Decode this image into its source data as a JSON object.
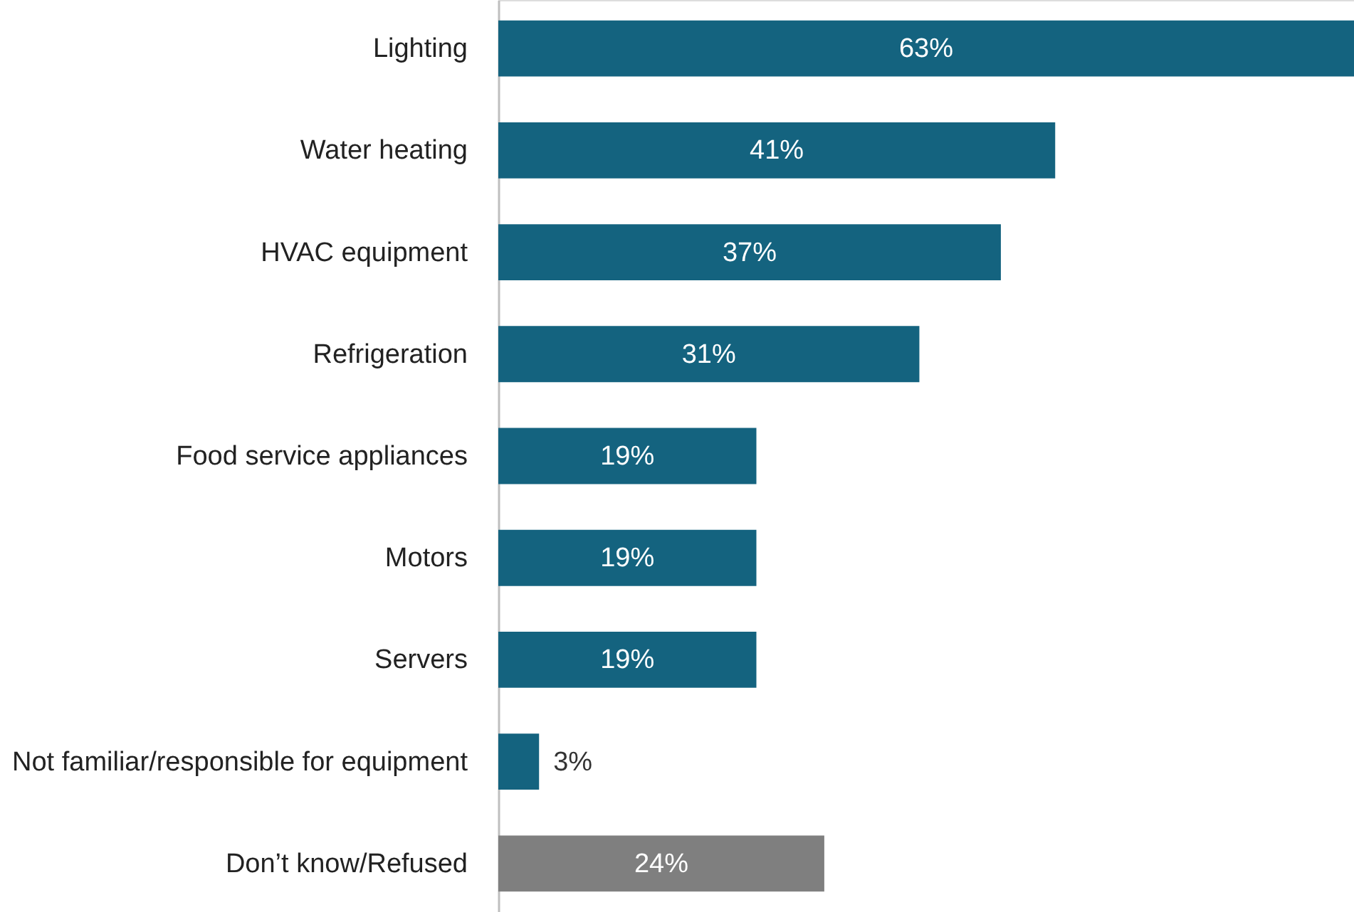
{
  "chart_data": {
    "type": "bar",
    "orientation": "horizontal",
    "categories": [
      "Lighting",
      "Water heating",
      "HVAC equipment",
      "Refrigeration",
      "Food service appliances",
      "Motors",
      "Servers",
      "Not familiar/responsible for equipment",
      "Don’t know/Refused"
    ],
    "values": [
      63,
      41,
      37,
      31,
      19,
      19,
      19,
      3,
      24
    ],
    "colors": [
      "#14637f",
      "#14637f",
      "#14637f",
      "#14637f",
      "#14637f",
      "#14637f",
      "#14637f",
      "#14637f",
      "#7f7f7f"
    ],
    "value_labels": [
      "63%",
      "41%",
      "37%",
      "31%",
      "19%",
      "19%",
      "19%",
      "3%",
      "24%"
    ],
    "xlim": [
      0,
      63
    ],
    "tick_labels": "y"
  }
}
